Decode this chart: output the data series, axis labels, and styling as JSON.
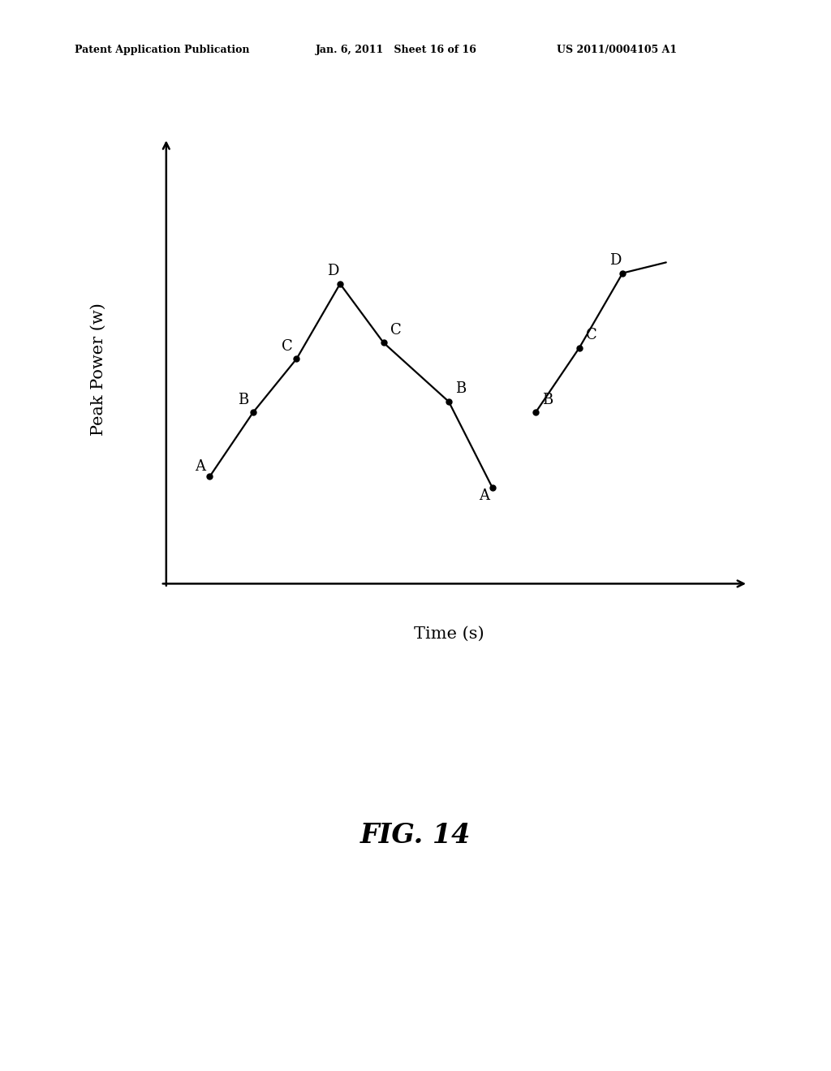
{
  "background_color": "#ffffff",
  "header_left": "Patent Application Publication",
  "header_mid": "Jan. 6, 2011   Sheet 16 of 16",
  "header_right": "US 2011/0004105 A1",
  "ylabel": "Peak Power (w)",
  "xlabel": "Time (s)",
  "fig_label": "FIG. 14",
  "points": {
    "x": [
      1.0,
      2.0,
      3.0,
      4.0,
      5.0,
      6.5,
      7.5,
      8.5,
      9.5,
      10.5,
      11.5
    ],
    "y": [
      2.0,
      3.2,
      4.2,
      5.6,
      4.5,
      3.4,
      1.8,
      3.2,
      4.4,
      5.8,
      6.0
    ],
    "labels": [
      "A",
      "B",
      "C",
      "D",
      "C",
      "B",
      "A",
      "B",
      "C",
      "D",
      ""
    ],
    "label_dx": [
      -0.35,
      -0.35,
      -0.35,
      -0.3,
      0.15,
      0.15,
      -0.3,
      0.15,
      0.15,
      -0.3,
      0
    ],
    "label_dy": [
      0.05,
      0.1,
      0.1,
      0.1,
      0.1,
      0.1,
      -0.3,
      0.1,
      0.1,
      0.1,
      0
    ],
    "has_dot": [
      true,
      true,
      true,
      true,
      true,
      true,
      true,
      true,
      true,
      true,
      false
    ],
    "connected": [
      true,
      true,
      true,
      true,
      true,
      true,
      false,
      true,
      true,
      true,
      false
    ]
  },
  "line_color": "#000000",
  "dot_color": "#000000",
  "dot_size": 5,
  "line_width": 1.6,
  "label_fontsize": 13,
  "axis_label_fontsize": 15,
  "fig_label_fontsize": 24,
  "header_fontsize": 9,
  "xlim": [
    0,
    13
  ],
  "ylim": [
    0,
    8
  ]
}
